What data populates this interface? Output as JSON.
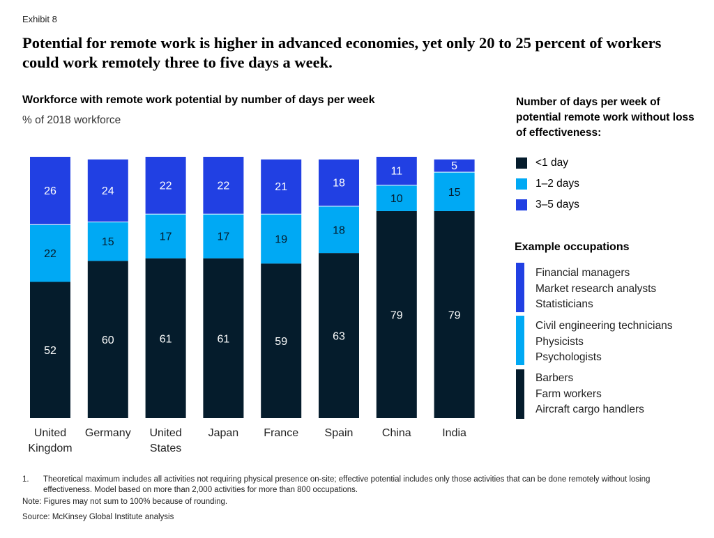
{
  "exhibit": "Exhibit 8",
  "title": "Potential for remote work is higher in advanced economies, yet only 20 to 25 percent of workers could work remotely three to five days a week.",
  "chart_data": {
    "type": "bar",
    "stacked": true,
    "title": "Workforce with remote work potential by number of days per week",
    "ylabel": "% of 2018 workforce",
    "ylim": [
      0,
      100
    ],
    "grid": false,
    "legend_placement": "right",
    "categories": [
      [
        "United",
        "Kingdom"
      ],
      [
        "Germany"
      ],
      [
        "United",
        "States"
      ],
      [
        "Japan"
      ],
      [
        "France"
      ],
      [
        "Spain"
      ],
      [
        "China"
      ],
      [
        "India"
      ]
    ],
    "series": [
      {
        "name": "<1 day",
        "color": "#051c2c",
        "label_color": "#ffffff",
        "values": [
          52,
          60,
          61,
          61,
          59,
          63,
          79,
          79
        ]
      },
      {
        "name": "1–2 days",
        "color": "#00a9f4",
        "label_color": "#051c2c",
        "values": [
          22,
          15,
          17,
          17,
          19,
          18,
          10,
          15
        ]
      },
      {
        "name": "3–5 days",
        "color": "#2140e3",
        "label_color": "#ffffff",
        "values": [
          26,
          24,
          22,
          22,
          21,
          18,
          11,
          5
        ]
      }
    ]
  },
  "legend": {
    "title": "Number of days per week of potential remote work without loss of effectiveness:",
    "items": [
      "<1 day",
      "1–2 days",
      "3–5 days"
    ]
  },
  "examples": {
    "title": "Example occupations",
    "groups": [
      {
        "color": "#2140e3",
        "items": [
          "Financial managers",
          "Market research analysts",
          "Statisticians"
        ]
      },
      {
        "color": "#00a9f4",
        "items": [
          "Civil engineering technicians",
          "Physicists",
          "Psychologists"
        ]
      },
      {
        "color": "#051c2c",
        "items": [
          "Barbers",
          "Farm workers",
          "Aircraft cargo handlers"
        ]
      }
    ]
  },
  "footnotes": {
    "num": "1.",
    "note1": "Theoretical maximum includes all activities not requiring physical presence on-site; effective potential includes only those activities that can be done remotely without losing effectiveness. Model based on more than 2,000 activities for more than 800 occupations.",
    "note": "Note: Figures may not sum to 100% because of rounding.",
    "source": "Source: McKinsey Global Institute analysis"
  }
}
